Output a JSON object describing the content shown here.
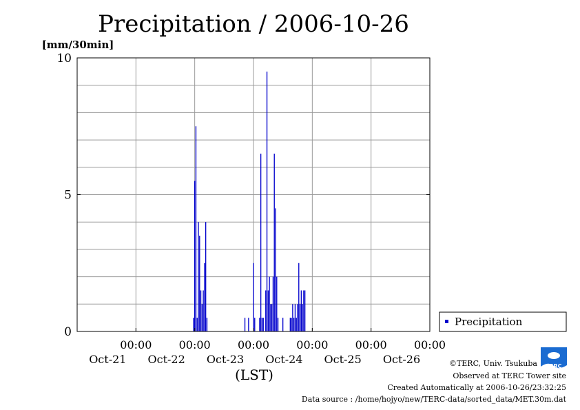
{
  "title": "Precipitation / 2006-10-26",
  "chart_data": {
    "type": "bar",
    "title": "Precipitation / 2006-10-26",
    "ylabel": "[mm/30min]",
    "xlabel": "(LST)",
    "ylim": [
      0,
      10
    ],
    "y_ticks": [
      "0",
      "5",
      "10"
    ],
    "x_ticks": [
      {
        "time": "00:00",
        "date": "Oct-21"
      },
      {
        "time": "00:00",
        "date": "Oct-22"
      },
      {
        "time": "00:00",
        "date": "Oct-23"
      },
      {
        "time": "00:00",
        "date": "Oct-24"
      },
      {
        "time": "00:00",
        "date": "Oct-25"
      },
      {
        "time": "00:00",
        "date": "Oct-26"
      }
    ],
    "xlim": [
      "2006-10-20T00:00",
      "2006-10-26T00:00"
    ],
    "grid": true,
    "legend_position": "right",
    "series": [
      {
        "name": "Precipitation",
        "color": "#0000cc",
        "points": [
          {
            "t": "2006-10-21T23:30",
            "v": 0.5
          },
          {
            "t": "2006-10-22T00:00",
            "v": 5.5
          },
          {
            "t": "2006-10-22T00:30",
            "v": 7.5
          },
          {
            "t": "2006-10-22T01:00",
            "v": 0.5
          },
          {
            "t": "2006-10-22T01:30",
            "v": 4.0
          },
          {
            "t": "2006-10-22T02:00",
            "v": 3.5
          },
          {
            "t": "2006-10-22T02:30",
            "v": 1.5
          },
          {
            "t": "2006-10-22T03:00",
            "v": 1.0
          },
          {
            "t": "2006-10-22T03:30",
            "v": 1.5
          },
          {
            "t": "2006-10-22T04:00",
            "v": 2.5
          },
          {
            "t": "2006-10-22T04:30",
            "v": 4.0
          },
          {
            "t": "2006-10-22T05:00",
            "v": 0.5
          },
          {
            "t": "2006-10-22T20:30",
            "v": 0.5
          },
          {
            "t": "2006-10-22T22:00",
            "v": 0.5
          },
          {
            "t": "2006-10-23T00:00",
            "v": 2.5
          },
          {
            "t": "2006-10-23T00:30",
            "v": 0.5
          },
          {
            "t": "2006-10-23T02:30",
            "v": 0.5
          },
          {
            "t": "2006-10-23T03:00",
            "v": 6.5
          },
          {
            "t": "2006-10-23T03:30",
            "v": 0.5
          },
          {
            "t": "2006-10-23T04:00",
            "v": 0.5
          },
          {
            "t": "2006-10-23T05:00",
            "v": 1.5
          },
          {
            "t": "2006-10-23T05:30",
            "v": 9.5
          },
          {
            "t": "2006-10-23T06:00",
            "v": 1.5
          },
          {
            "t": "2006-10-23T06:30",
            "v": 2.0
          },
          {
            "t": "2006-10-23T07:00",
            "v": 1.0
          },
          {
            "t": "2006-10-23T07:30",
            "v": 1.0
          },
          {
            "t": "2006-10-23T08:00",
            "v": 2.0
          },
          {
            "t": "2006-10-23T08:30",
            "v": 6.5
          },
          {
            "t": "2006-10-23T09:00",
            "v": 4.5
          },
          {
            "t": "2006-10-23T09:30",
            "v": 2.0
          },
          {
            "t": "2006-10-23T10:00",
            "v": 0.5
          },
          {
            "t": "2006-10-23T12:00",
            "v": 0.5
          },
          {
            "t": "2006-10-23T15:00",
            "v": 0.5
          },
          {
            "t": "2006-10-23T15:30",
            "v": 0.5
          },
          {
            "t": "2006-10-23T16:00",
            "v": 1.0
          },
          {
            "t": "2006-10-23T16:30",
            "v": 0.5
          },
          {
            "t": "2006-10-23T17:00",
            "v": 1.0
          },
          {
            "t": "2006-10-23T17:30",
            "v": 0.5
          },
          {
            "t": "2006-10-23T18:00",
            "v": 1.0
          },
          {
            "t": "2006-10-23T18:30",
            "v": 2.5
          },
          {
            "t": "2006-10-23T19:00",
            "v": 1.0
          },
          {
            "t": "2006-10-23T19:30",
            "v": 1.5
          },
          {
            "t": "2006-10-23T20:00",
            "v": 1.0
          },
          {
            "t": "2006-10-23T20:30",
            "v": 1.5
          },
          {
            "t": "2006-10-23T21:00",
            "v": 1.5
          }
        ]
      }
    ]
  },
  "footer": {
    "copyright": "©TERC, Univ. Tsukuba",
    "observed": "Observed at TERC Tower site",
    "created": "Created Automatically at 2006-10-26/23:32:25",
    "source": "Data source : /home/hojyo/new/TERC-data/sorted_data/MET.30m.dat"
  },
  "logo": {
    "text": "TERC",
    "color": "#1a6bd1"
  }
}
